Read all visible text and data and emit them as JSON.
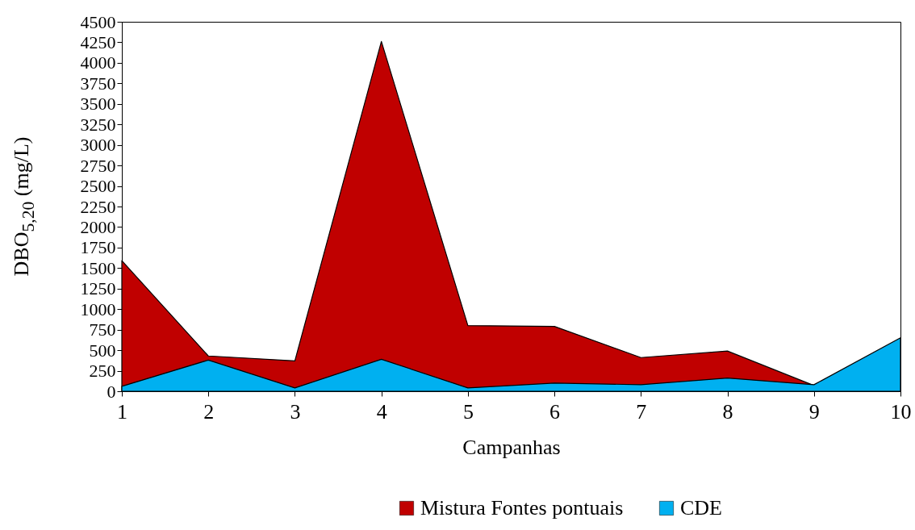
{
  "chart_data": {
    "type": "area",
    "xlabel": "Campanhas",
    "ylabel": "DBO$_{5,20}$ (mg/L)",
    "x": [
      1,
      2,
      3,
      4,
      5,
      6,
      7,
      8,
      9,
      10
    ],
    "xlim": [
      1,
      10
    ],
    "xticks": [
      1,
      2,
      3,
      4,
      5,
      6,
      7,
      8,
      9,
      10
    ],
    "ylim": [
      0,
      4500
    ],
    "yticks": [
      0,
      250,
      500,
      750,
      1000,
      1250,
      1500,
      1750,
      2000,
      2250,
      2500,
      2750,
      3000,
      3250,
      3500,
      3750,
      4000,
      4250,
      4500
    ],
    "legend": "bottom",
    "grid": false,
    "series": [
      {
        "name": "Mistura Fontes pontuais",
        "color": "#c00000",
        "values": [
          1590,
          430,
          370,
          4260,
          800,
          790,
          410,
          490,
          70,
          null
        ]
      },
      {
        "name": "CDE",
        "color": "#00b0f0",
        "values": [
          60,
          380,
          40,
          390,
          40,
          100,
          80,
          160,
          80,
          650
        ]
      }
    ]
  }
}
